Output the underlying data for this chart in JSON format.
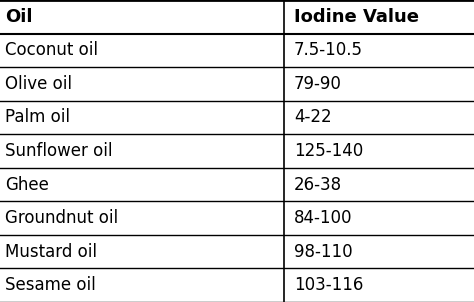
{
  "col1_header": "Oil",
  "col2_header": "Iodine Value",
  "rows": [
    [
      "Coconut oil",
      "7.5-10.5"
    ],
    [
      "Olive oil",
      "79-90"
    ],
    [
      "Palm oil",
      "4-22"
    ],
    [
      "Sunflower oil",
      "125-140"
    ],
    [
      "Ghee",
      "26-38"
    ],
    [
      "Groundnut oil",
      "84-100"
    ],
    [
      "Mustard oil",
      "98-110"
    ],
    [
      "Sesame oil",
      "103-116"
    ]
  ],
  "bg_color": "#ffffff",
  "header_fontsize": 13,
  "cell_fontsize": 12,
  "col_split": 0.6,
  "line_color": "#000000",
  "header_font_weight": "bold",
  "cell_font_weight": "normal"
}
